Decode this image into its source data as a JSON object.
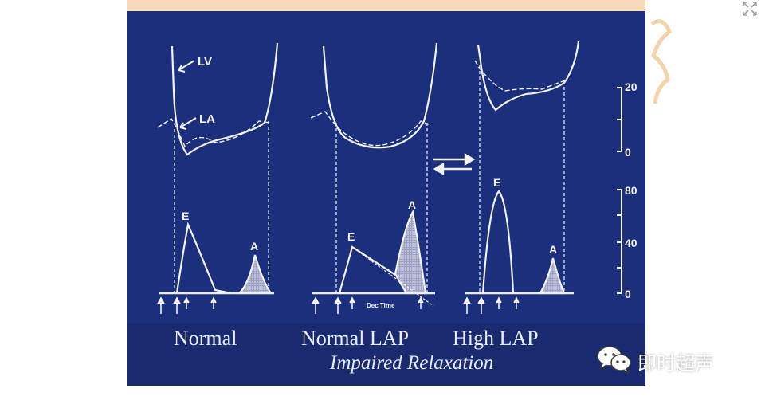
{
  "captions": {
    "normal": "Normal",
    "normal_lap": "Normal LAP",
    "high_lap": "High LAP",
    "impaired": "Impaired Relaxation"
  },
  "curve_labels": {
    "lv": "LV",
    "la": "LA",
    "e": "E",
    "a": "A",
    "dec_time": "Dec Time"
  },
  "pressure_scale": {
    "ticks": [
      "20",
      "0"
    ]
  },
  "velocity_scale": {
    "ticks": [
      "80",
      "40",
      "0"
    ]
  },
  "watermark": {
    "brand": "即时超声"
  },
  "colors": {
    "figure_bg": "#1c2f7d",
    "caption_bg": "#1a2a6f",
    "line": "#f2f2f2",
    "fill": "#c9c9d6"
  },
  "icons": {
    "expand": "expand-icon",
    "wechat": "wechat-icon"
  }
}
